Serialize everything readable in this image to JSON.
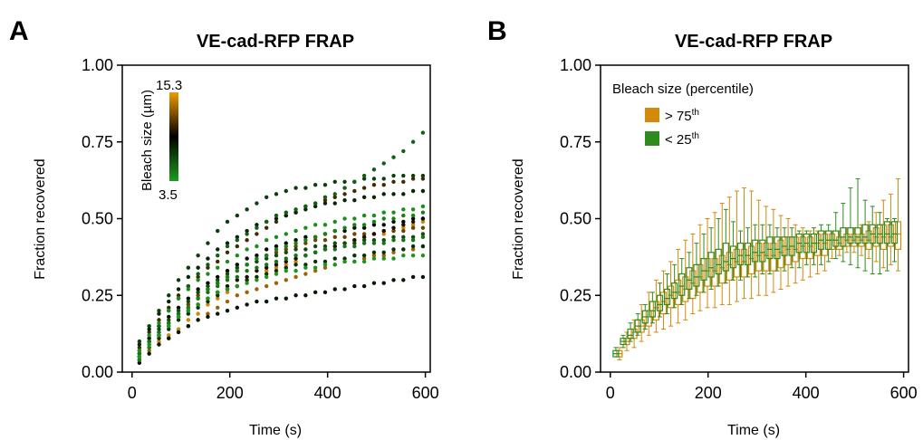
{
  "panels": [
    {
      "letter": "A"
    },
    {
      "letter": "B"
    }
  ],
  "colors": {
    "large": "#d18a0a",
    "small": "#2e8b1e",
    "mid": "#000000"
  },
  "chart_data": [
    {
      "type": "scatter",
      "title": "VE-cad-RFP FRAP",
      "xlabel": "Time (s)",
      "ylabel": "Fraction recovered",
      "xlim": [
        -20,
        610
      ],
      "ylim": [
        0,
        1
      ],
      "xticks": [
        "0",
        "200",
        "400",
        "600"
      ],
      "yticks": [
        "0.00",
        "0.25",
        "0.50",
        "0.75",
        "1.00"
      ],
      "grid": false,
      "colorbar": {
        "label": "Bleach size (µm)",
        "max_label": "15.3",
        "min_label": "3.5",
        "min": 3.5,
        "max": 15.3
      },
      "traces": [
        {
          "size": 14.5,
          "y": [
            0.05,
            0.08,
            0.1,
            0.12,
            0.14,
            0.17,
            0.19,
            0.22,
            0.24,
            0.26,
            0.28,
            0.3,
            0.31,
            0.33,
            0.34,
            0.35,
            0.36,
            0.38,
            0.39,
            0.4,
            0.41,
            0.42,
            0.43,
            0.44,
            0.45,
            0.45,
            0.46,
            0.47,
            0.48,
            0.49
          ]
        },
        {
          "size": 13.2,
          "y": [
            0.04,
            0.07,
            0.09,
            0.11,
            0.13,
            0.15,
            0.17,
            0.19,
            0.21,
            0.23,
            0.25,
            0.26,
            0.27,
            0.28,
            0.29,
            0.3,
            0.31,
            0.32,
            0.33,
            0.34,
            0.35,
            0.36,
            0.36,
            0.37,
            0.38,
            0.38,
            0.39,
            0.4,
            0.4,
            0.41
          ]
        },
        {
          "size": 12.0,
          "y": [
            0.06,
            0.1,
            0.13,
            0.16,
            0.19,
            0.22,
            0.25,
            0.27,
            0.29,
            0.31,
            0.33,
            0.35,
            0.36,
            0.38,
            0.39,
            0.4,
            0.41,
            0.42,
            0.43,
            0.43,
            0.44,
            0.44,
            0.45,
            0.45,
            0.45,
            0.46,
            0.46,
            0.46,
            0.47,
            0.47
          ]
        },
        {
          "size": 11.0,
          "y": [
            0.08,
            0.13,
            0.17,
            0.21,
            0.25,
            0.28,
            0.31,
            0.34,
            0.36,
            0.39,
            0.41,
            0.43,
            0.45,
            0.47,
            0.49,
            0.51,
            0.52,
            0.54,
            0.55,
            0.56,
            0.57,
            0.58,
            0.59,
            0.6,
            0.61,
            0.61,
            0.62,
            0.62,
            0.63,
            0.63
          ]
        },
        {
          "size": 10.0,
          "y": [
            0.05,
            0.09,
            0.12,
            0.15,
            0.18,
            0.2,
            0.22,
            0.24,
            0.26,
            0.28,
            0.3,
            0.31,
            0.33,
            0.34,
            0.35,
            0.36,
            0.37,
            0.38,
            0.39,
            0.4,
            0.41,
            0.42,
            0.43,
            0.44,
            0.45,
            0.46,
            0.47,
            0.48,
            0.49,
            0.5
          ]
        },
        {
          "size": 9.0,
          "y": [
            0.07,
            0.11,
            0.15,
            0.18,
            0.21,
            0.24,
            0.27,
            0.29,
            0.31,
            0.33,
            0.35,
            0.37,
            0.38,
            0.4,
            0.41,
            0.42,
            0.43,
            0.44,
            0.44,
            0.45,
            0.46,
            0.46,
            0.47,
            0.47,
            0.48,
            0.48,
            0.49,
            0.49,
            0.5,
            0.5
          ]
        },
        {
          "size": 8.5,
          "y": [
            0.03,
            0.06,
            0.09,
            0.11,
            0.13,
            0.15,
            0.17,
            0.18,
            0.19,
            0.2,
            0.21,
            0.22,
            0.23,
            0.23,
            0.24,
            0.24,
            0.25,
            0.25,
            0.26,
            0.26,
            0.27,
            0.27,
            0.28,
            0.28,
            0.29,
            0.29,
            0.3,
            0.3,
            0.31,
            0.31
          ]
        },
        {
          "size": 8.0,
          "y": [
            0.09,
            0.14,
            0.19,
            0.23,
            0.27,
            0.31,
            0.34,
            0.37,
            0.4,
            0.42,
            0.44,
            0.46,
            0.48,
            0.49,
            0.5,
            0.51,
            0.52,
            0.53,
            0.54,
            0.55,
            0.55,
            0.56,
            0.56,
            0.57,
            0.57,
            0.58,
            0.58,
            0.58,
            0.59,
            0.59
          ]
        },
        {
          "size": 7.5,
          "y": [
            0.04,
            0.08,
            0.11,
            0.14,
            0.17,
            0.19,
            0.21,
            0.23,
            0.25,
            0.27,
            0.28,
            0.3,
            0.31,
            0.32,
            0.33,
            0.34,
            0.35,
            0.35,
            0.36,
            0.36,
            0.37,
            0.37,
            0.38,
            0.38,
            0.39,
            0.39,
            0.4,
            0.4,
            0.41,
            0.41
          ]
        },
        {
          "size": 7.0,
          "y": [
            0.1,
            0.15,
            0.2,
            0.25,
            0.3,
            0.34,
            0.38,
            0.42,
            0.46,
            0.49,
            0.51,
            0.53,
            0.55,
            0.57,
            0.58,
            0.59,
            0.6,
            0.6,
            0.61,
            0.61,
            0.62,
            0.62,
            0.62,
            0.63,
            0.63,
            0.63,
            0.64,
            0.64,
            0.64,
            0.64
          ]
        },
        {
          "size": 6.5,
          "y": [
            0.06,
            0.1,
            0.14,
            0.17,
            0.2,
            0.23,
            0.26,
            0.28,
            0.3,
            0.32,
            0.34,
            0.35,
            0.36,
            0.37,
            0.38,
            0.39,
            0.4,
            0.4,
            0.41,
            0.41,
            0.42,
            0.42,
            0.42,
            0.43,
            0.43,
            0.43,
            0.44,
            0.44,
            0.44,
            0.45
          ]
        },
        {
          "size": 5.8,
          "y": [
            0.05,
            0.1,
            0.15,
            0.2,
            0.24,
            0.28,
            0.32,
            0.35,
            0.38,
            0.41,
            0.43,
            0.45,
            0.47,
            0.49,
            0.51,
            0.52,
            0.53,
            0.54,
            0.55,
            0.57,
            0.58,
            0.6,
            0.62,
            0.64,
            0.66,
            0.68,
            0.7,
            0.72,
            0.75,
            0.78
          ]
        },
        {
          "size": 5.0,
          "y": [
            0.06,
            0.1,
            0.13,
            0.16,
            0.19,
            0.21,
            0.24,
            0.26,
            0.28,
            0.3,
            0.31,
            0.33,
            0.34,
            0.35,
            0.36,
            0.37,
            0.38,
            0.38,
            0.39,
            0.4,
            0.4,
            0.41,
            0.41,
            0.42,
            0.42,
            0.42,
            0.43,
            0.43,
            0.43,
            0.44
          ]
        },
        {
          "size": 4.5,
          "y": [
            0.04,
            0.08,
            0.12,
            0.15,
            0.18,
            0.21,
            0.24,
            0.27,
            0.29,
            0.31,
            0.33,
            0.35,
            0.37,
            0.38,
            0.4,
            0.41,
            0.42,
            0.43,
            0.44,
            0.45,
            0.46,
            0.47,
            0.48,
            0.48,
            0.49,
            0.5,
            0.5,
            0.51,
            0.51,
            0.52
          ]
        },
        {
          "size": 4.0,
          "y": [
            0.07,
            0.12,
            0.16,
            0.2,
            0.24,
            0.27,
            0.3,
            0.32,
            0.34,
            0.36,
            0.38,
            0.4,
            0.41,
            0.43,
            0.44,
            0.45,
            0.46,
            0.47,
            0.48,
            0.48,
            0.49,
            0.5,
            0.5,
            0.51,
            0.51,
            0.52,
            0.52,
            0.53,
            0.53,
            0.54
          ]
        },
        {
          "size": 3.7,
          "y": [
            0.05,
            0.09,
            0.12,
            0.15,
            0.18,
            0.2,
            0.22,
            0.24,
            0.26,
            0.27,
            0.28,
            0.29,
            0.3,
            0.31,
            0.32,
            0.33,
            0.33,
            0.34,
            0.34,
            0.35,
            0.35,
            0.36,
            0.36,
            0.36,
            0.37,
            0.37,
            0.37,
            0.38,
            0.38,
            0.38
          ]
        }
      ]
    },
    {
      "type": "box",
      "title": "VE-cad-RFP FRAP",
      "xlabel": "Time (s)",
      "ylabel": "Fraction recovered",
      "xlim": [
        -20,
        610
      ],
      "ylim": [
        0,
        1
      ],
      "xticks": [
        "0",
        "200",
        "400",
        "600"
      ],
      "yticks": [
        "0.00",
        "0.25",
        "0.50",
        "0.75",
        "1.00"
      ],
      "grid": false,
      "legend": {
        "title": "Bleach size (percentile)",
        "placement": "top-left",
        "entries": [
          {
            "label": "> 75",
            "sup": "th",
            "color": "#d18a0a"
          },
          {
            "label": "< 25",
            "sup": "th",
            "color": "#2e8b1e"
          }
        ]
      },
      "series": [
        {
          "name": "> 75th",
          "color": "#d18a0a",
          "median": [
            0.06,
            0.1,
            0.13,
            0.15,
            0.18,
            0.21,
            0.23,
            0.25,
            0.26,
            0.27,
            0.29,
            0.31,
            0.33,
            0.33,
            0.34,
            0.35,
            0.36,
            0.36,
            0.37,
            0.38,
            0.38,
            0.38,
            0.39,
            0.4,
            0.4,
            0.41,
            0.41,
            0.42,
            0.42,
            0.43,
            0.42,
            0.43,
            0.43,
            0.43,
            0.43,
            0.44,
            0.44,
            0.44,
            0.45
          ],
          "q1": [
            0.05,
            0.09,
            0.11,
            0.13,
            0.15,
            0.17,
            0.19,
            0.21,
            0.22,
            0.23,
            0.24,
            0.26,
            0.28,
            0.28,
            0.29,
            0.3,
            0.31,
            0.31,
            0.32,
            0.33,
            0.33,
            0.33,
            0.34,
            0.35,
            0.36,
            0.37,
            0.37,
            0.38,
            0.38,
            0.4,
            0.4,
            0.41,
            0.41,
            0.41,
            0.4,
            0.41,
            0.4,
            0.41,
            0.4
          ],
          "q3": [
            0.07,
            0.11,
            0.14,
            0.17,
            0.2,
            0.23,
            0.26,
            0.28,
            0.3,
            0.31,
            0.33,
            0.35,
            0.37,
            0.37,
            0.38,
            0.39,
            0.4,
            0.4,
            0.41,
            0.42,
            0.42,
            0.42,
            0.43,
            0.44,
            0.44,
            0.44,
            0.44,
            0.45,
            0.45,
            0.45,
            0.44,
            0.45,
            0.45,
            0.45,
            0.46,
            0.47,
            0.48,
            0.48,
            0.49
          ],
          "lo": [
            0.04,
            0.07,
            0.08,
            0.1,
            0.12,
            0.13,
            0.14,
            0.15,
            0.16,
            0.17,
            0.19,
            0.2,
            0.21,
            0.21,
            0.22,
            0.22,
            0.23,
            0.24,
            0.24,
            0.25,
            0.25,
            0.26,
            0.27,
            0.28,
            0.29,
            0.3,
            0.31,
            0.32,
            0.33,
            0.37,
            0.38,
            0.39,
            0.39,
            0.38,
            0.37,
            0.36,
            0.34,
            0.35,
            0.33
          ],
          "hi": [
            0.08,
            0.13,
            0.17,
            0.22,
            0.26,
            0.3,
            0.33,
            0.36,
            0.4,
            0.43,
            0.45,
            0.48,
            0.5,
            0.52,
            0.55,
            0.57,
            0.59,
            0.6,
            0.59,
            0.56,
            0.54,
            0.53,
            0.51,
            0.5,
            0.48,
            0.47,
            0.46,
            0.46,
            0.46,
            0.46,
            0.46,
            0.47,
            0.47,
            0.48,
            0.49,
            0.52,
            0.56,
            0.58,
            0.63
          ]
        },
        {
          "name": "< 25th",
          "color": "#2e8b1e",
          "median": [
            0.06,
            0.1,
            0.12,
            0.15,
            0.18,
            0.2,
            0.22,
            0.24,
            0.26,
            0.28,
            0.3,
            0.31,
            0.33,
            0.34,
            0.35,
            0.36,
            0.37,
            0.38,
            0.38,
            0.39,
            0.39,
            0.4,
            0.4,
            0.41,
            0.41,
            0.42,
            0.42,
            0.42,
            0.43,
            0.43,
            0.43,
            0.44,
            0.44,
            0.44,
            0.44,
            0.45,
            0.45,
            0.45,
            0.45
          ],
          "q1": [
            0.05,
            0.09,
            0.11,
            0.13,
            0.16,
            0.18,
            0.2,
            0.22,
            0.24,
            0.25,
            0.27,
            0.28,
            0.3,
            0.31,
            0.32,
            0.33,
            0.34,
            0.35,
            0.35,
            0.36,
            0.36,
            0.37,
            0.37,
            0.38,
            0.38,
            0.39,
            0.39,
            0.39,
            0.4,
            0.4,
            0.41,
            0.41,
            0.42,
            0.42,
            0.42,
            0.42,
            0.42,
            0.42,
            0.42
          ],
          "q3": [
            0.07,
            0.11,
            0.14,
            0.17,
            0.2,
            0.23,
            0.25,
            0.27,
            0.29,
            0.32,
            0.34,
            0.35,
            0.37,
            0.39,
            0.4,
            0.42,
            0.41,
            0.42,
            0.42,
            0.43,
            0.43,
            0.44,
            0.44,
            0.44,
            0.44,
            0.45,
            0.45,
            0.45,
            0.46,
            0.46,
            0.46,
            0.47,
            0.47,
            0.47,
            0.48,
            0.48,
            0.48,
            0.49,
            0.49
          ],
          "lo": [
            0.05,
            0.08,
            0.1,
            0.12,
            0.14,
            0.16,
            0.18,
            0.19,
            0.21,
            0.22,
            0.24,
            0.25,
            0.26,
            0.27,
            0.28,
            0.29,
            0.3,
            0.3,
            0.31,
            0.31,
            0.32,
            0.32,
            0.33,
            0.33,
            0.34,
            0.34,
            0.35,
            0.35,
            0.35,
            0.36,
            0.37,
            0.36,
            0.35,
            0.34,
            0.33,
            0.32,
            0.32,
            0.33,
            0.36
          ],
          "hi": [
            0.08,
            0.12,
            0.16,
            0.19,
            0.22,
            0.26,
            0.29,
            0.32,
            0.35,
            0.37,
            0.39,
            0.42,
            0.45,
            0.47,
            0.5,
            0.53,
            0.49,
            0.46,
            0.47,
            0.48,
            0.48,
            0.48,
            0.47,
            0.47,
            0.47,
            0.46,
            0.46,
            0.47,
            0.48,
            0.48,
            0.52,
            0.55,
            0.6,
            0.63,
            0.56,
            0.54,
            0.52,
            0.5,
            0.5
          ]
        }
      ]
    }
  ]
}
